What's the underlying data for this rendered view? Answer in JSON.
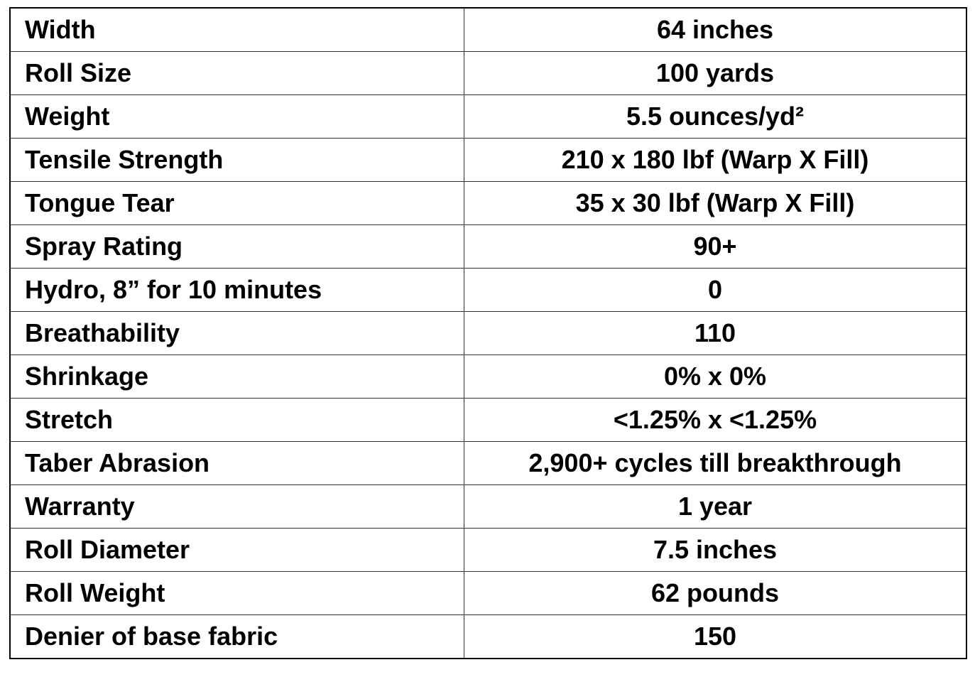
{
  "table": {
    "rows": [
      [
        "Width",
        "64 inches"
      ],
      [
        "Roll Size",
        "100 yards"
      ],
      [
        "Weight",
        "5.5 ounces/yd²"
      ],
      [
        "Tensile Strength",
        "210 x 180 lbf (Warp X Fill)"
      ],
      [
        "Tongue Tear",
        "35 x 30 lbf (Warp X Fill)"
      ],
      [
        "Spray Rating",
        "90+"
      ],
      [
        "Hydro, 8” for 10 minutes",
        "0"
      ],
      [
        "Breathability",
        "110"
      ],
      [
        "Shrinkage",
        "0% x 0%"
      ],
      [
        "Stretch",
        "<1.25% x <1.25%"
      ],
      [
        "Taber Abrasion",
        "2,900+ cycles till breakthrough"
      ],
      [
        "Warranty",
        "1 year"
      ],
      [
        "Roll Diameter",
        "7.5 inches"
      ],
      [
        "Roll Weight",
        "62 pounds"
      ],
      [
        "Denier of base fabric",
        "150"
      ]
    ]
  }
}
